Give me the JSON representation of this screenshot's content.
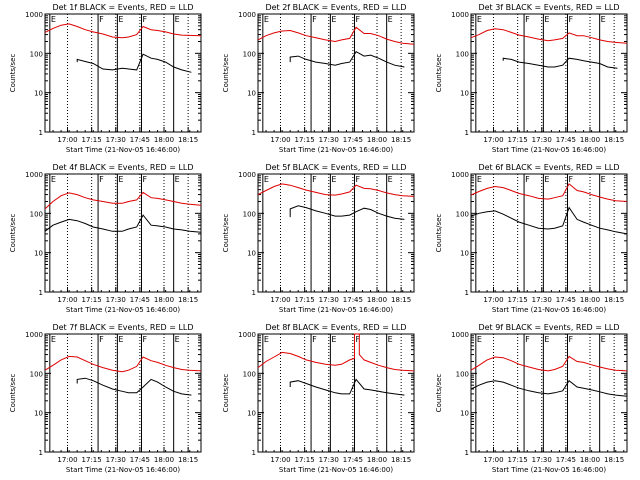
{
  "colors": {
    "events": "#000000",
    "lld": "#e00000",
    "axis": "#000000",
    "background": "#ffffff"
  },
  "chart_data": {
    "type": "line",
    "y_scale": "log",
    "ylim": [
      1,
      1000
    ],
    "y_tick_labels": [
      "1",
      "10",
      "100",
      "1000"
    ],
    "ylabel": "Counts/sec",
    "xlabel": "Start Time (21-Nov-05 16:46:00)",
    "x_unit": "minutes from start",
    "xlim": [
      0,
      97
    ],
    "x_ticks": [
      14,
      29,
      44,
      59,
      74,
      89
    ],
    "x_tick_labels": [
      "17:00",
      "17:15",
      "17:30",
      "17:45",
      "18:00",
      "18:15"
    ],
    "interval_flags": [
      {
        "label": "E",
        "t": 3
      },
      {
        "label": "F",
        "t": 33
      },
      {
        "label": "E",
        "t": 45
      },
      {
        "label": "F",
        "t": 60
      },
      {
        "label": "E",
        "t": 80
      }
    ],
    "panels": [
      {
        "title": "Det 1f BLACK = Events, RED = LLD",
        "series": [
          {
            "name": "Events",
            "color": "#000000",
            "x": [
              20,
              20,
              25,
              30,
              36,
              42,
              48,
              52,
              57,
              61,
              66,
              70,
              75,
              80,
              85,
              91
            ],
            "y": [
              60,
              70,
              62,
              55,
              40,
              38,
              42,
              40,
              38,
              95,
              75,
              70,
              60,
              45,
              38,
              33
            ]
          },
          {
            "name": "LLD",
            "color": "#e00000",
            "x": [
              0,
              5,
              10,
              15,
              20,
              25,
              30,
              36,
              42,
              48,
              52,
              57,
              61,
              66,
              70,
              75,
              80,
              85,
              90,
              97
            ],
            "y": [
              340,
              430,
              520,
              560,
              480,
              400,
              350,
              310,
              260,
              250,
              260,
              300,
              480,
              400,
              380,
              350,
              310,
              290,
              285,
              280
            ]
          }
        ]
      },
      {
        "title": "Det 2f BLACK = Events, RED = LLD",
        "series": [
          {
            "name": "Events",
            "color": "#000000",
            "x": [
              20,
              20,
              25,
              30,
              36,
              42,
              48,
              52,
              57,
              61,
              66,
              70,
              75,
              80,
              85,
              91
            ],
            "y": [
              60,
              80,
              85,
              70,
              60,
              55,
              50,
              55,
              60,
              110,
              85,
              90,
              75,
              60,
              50,
              45
            ]
          },
          {
            "name": "LLD",
            "color": "#e00000",
            "x": [
              0,
              5,
              10,
              15,
              20,
              25,
              30,
              36,
              42,
              48,
              52,
              57,
              61,
              66,
              70,
              75,
              80,
              85,
              90,
              97
            ],
            "y": [
              220,
              280,
              330,
              370,
              380,
              330,
              280,
              250,
              220,
              200,
              220,
              240,
              460,
              320,
              320,
              280,
              230,
              200,
              180,
              170
            ]
          }
        ]
      },
      {
        "title": "Det 3f BLACK = Events, RED = LLD",
        "series": [
          {
            "name": "Events",
            "color": "#000000",
            "x": [
              20,
              20,
              25,
              30,
              36,
              42,
              48,
              52,
              57,
              61,
              66,
              70,
              75,
              80,
              85,
              91
            ],
            "y": [
              65,
              75,
              70,
              60,
              55,
              50,
              45,
              45,
              50,
              75,
              70,
              65,
              60,
              55,
              45,
              42
            ]
          },
          {
            "name": "LLD",
            "color": "#e00000",
            "x": [
              0,
              5,
              10,
              15,
              20,
              25,
              30,
              36,
              42,
              48,
              52,
              57,
              61,
              66,
              70,
              75,
              80,
              85,
              90,
              97
            ],
            "y": [
              250,
              300,
              380,
              420,
              400,
              340,
              290,
              260,
              230,
              210,
              220,
              240,
              330,
              280,
              280,
              250,
              220,
              200,
              190,
              180
            ]
          }
        ]
      },
      {
        "title": "Det 4f BLACK = Events, RED = LLD",
        "series": [
          {
            "name": "Events",
            "color": "#000000",
            "x": [
              0,
              5,
              10,
              15,
              20,
              25,
              30,
              36,
              42,
              48,
              52,
              57,
              61,
              66,
              70,
              75,
              80,
              85,
              90,
              97
            ],
            "y": [
              35,
              50,
              60,
              70,
              65,
              55,
              45,
              40,
              35,
              35,
              40,
              45,
              90,
              50,
              48,
              45,
              40,
              38,
              35,
              33
            ]
          },
          {
            "name": "LLD",
            "color": "#e00000",
            "x": [
              0,
              5,
              10,
              15,
              20,
              25,
              30,
              36,
              42,
              48,
              52,
              57,
              61,
              66,
              70,
              75,
              80,
              85,
              90,
              97
            ],
            "y": [
              130,
              200,
              280,
              330,
              300,
              250,
              220,
              200,
              180,
              180,
              200,
              220,
              340,
              250,
              240,
              220,
              200,
              180,
              170,
              160
            ]
          }
        ]
      },
      {
        "title": "Det 5f BLACK = Events, RED = LLD",
        "series": [
          {
            "name": "Events",
            "color": "#000000",
            "x": [
              20,
              20,
              25,
              30,
              36,
              42,
              48,
              52,
              57,
              61,
              66,
              70,
              75,
              80,
              85,
              91
            ],
            "y": [
              80,
              130,
              155,
              140,
              115,
              100,
              85,
              85,
              90,
              110,
              135,
              125,
              100,
              85,
              75,
              70
            ]
          },
          {
            "name": "LLD",
            "color": "#e00000",
            "x": [
              0,
              5,
              10,
              15,
              20,
              25,
              30,
              36,
              42,
              48,
              52,
              57,
              61,
              66,
              70,
              75,
              80,
              85,
              90,
              97
            ],
            "y": [
              300,
              380,
              480,
              560,
              520,
              450,
              390,
              340,
              300,
              290,
              310,
              350,
              520,
              430,
              420,
              380,
              330,
              300,
              280,
              270
            ]
          }
        ]
      },
      {
        "title": "Det 6f BLACK = Events, RED = LLD",
        "series": [
          {
            "name": "Events",
            "color": "#000000",
            "x": [
              0,
              5,
              10,
              15,
              20,
              25,
              30,
              36,
              42,
              48,
              52,
              57,
              61,
              66,
              70,
              75,
              80,
              85,
              90,
              97
            ],
            "y": [
              85,
              100,
              110,
              115,
              95,
              75,
              60,
              50,
              42,
              40,
              42,
              48,
              140,
              70,
              60,
              50,
              42,
              38,
              34,
              30
            ]
          },
          {
            "name": "LLD",
            "color": "#e00000",
            "x": [
              0,
              5,
              10,
              15,
              20,
              25,
              30,
              36,
              42,
              48,
              52,
              57,
              61,
              66,
              70,
              75,
              80,
              85,
              90,
              97
            ],
            "y": [
              290,
              360,
              430,
              480,
              450,
              380,
              320,
              280,
              240,
              230,
              250,
              280,
              560,
              380,
              350,
              300,
              260,
              230,
              210,
              200
            ]
          }
        ]
      },
      {
        "title": "Det 7f BLACK = Events, RED = LLD",
        "series": [
          {
            "name": "Events",
            "color": "#000000",
            "x": [
              20,
              20,
              25,
              30,
              36,
              42,
              48,
              52,
              57,
              61,
              66,
              70,
              75,
              80,
              85,
              91
            ],
            "y": [
              55,
              70,
              75,
              65,
              50,
              40,
              35,
              32,
              32,
              45,
              70,
              60,
              45,
              35,
              30,
              28
            ]
          },
          {
            "name": "LLD",
            "color": "#e00000",
            "x": [
              0,
              5,
              10,
              15,
              20,
              25,
              30,
              36,
              42,
              48,
              52,
              57,
              61,
              66,
              70,
              75,
              80,
              85,
              90,
              97
            ],
            "y": [
              120,
              160,
              220,
              270,
              260,
              210,
              170,
              140,
              120,
              110,
              120,
              150,
              260,
              210,
              190,
              160,
              140,
              125,
              120,
              115
            ]
          }
        ]
      },
      {
        "title": "Det 8f BLACK = Events, RED = LLD",
        "series": [
          {
            "name": "Events",
            "color": "#000000",
            "x": [
              20,
              20,
              25,
              30,
              36,
              42,
              48,
              52,
              57,
              61,
              66,
              70,
              75,
              80,
              85,
              91
            ],
            "y": [
              45,
              60,
              65,
              55,
              45,
              38,
              32,
              30,
              30,
              70,
              40,
              38,
              35,
              32,
              30,
              28
            ]
          },
          {
            "name": "LLD",
            "color": "#e00000",
            "x": [
              0,
              5,
              10,
              15,
              20,
              25,
              30,
              36,
              42,
              48,
              52,
              57,
              60,
              60,
              63,
              63,
              66,
              70,
              75,
              80,
              85,
              90,
              97
            ],
            "y": [
              140,
              200,
              260,
              340,
              320,
              270,
              220,
              190,
              170,
              160,
              170,
              220,
              240,
              1000,
              1000,
              300,
              220,
              190,
              160,
              140,
              125,
              120,
              115
            ]
          }
        ]
      },
      {
        "title": "Det 9f BLACK = Events, RED = LLD",
        "series": [
          {
            "name": "Events",
            "color": "#000000",
            "x": [
              0,
              5,
              10,
              15,
              20,
              25,
              30,
              36,
              42,
              48,
              52,
              57,
              61,
              66,
              70,
              75,
              80,
              85,
              90,
              97
            ],
            "y": [
              40,
              50,
              60,
              65,
              60,
              50,
              42,
              36,
              32,
              30,
              32,
              36,
              65,
              45,
              42,
              38,
              34,
              30,
              28,
              26
            ]
          },
          {
            "name": "LLD",
            "color": "#e00000",
            "x": [
              0,
              5,
              10,
              15,
              20,
              25,
              30,
              36,
              42,
              48,
              52,
              57,
              61,
              66,
              70,
              75,
              80,
              85,
              90,
              97
            ],
            "y": [
              120,
              160,
              220,
              260,
              250,
              210,
              170,
              145,
              125,
              115,
              125,
              150,
              270,
              200,
              190,
              165,
              145,
              130,
              120,
              115
            ]
          }
        ]
      }
    ]
  }
}
